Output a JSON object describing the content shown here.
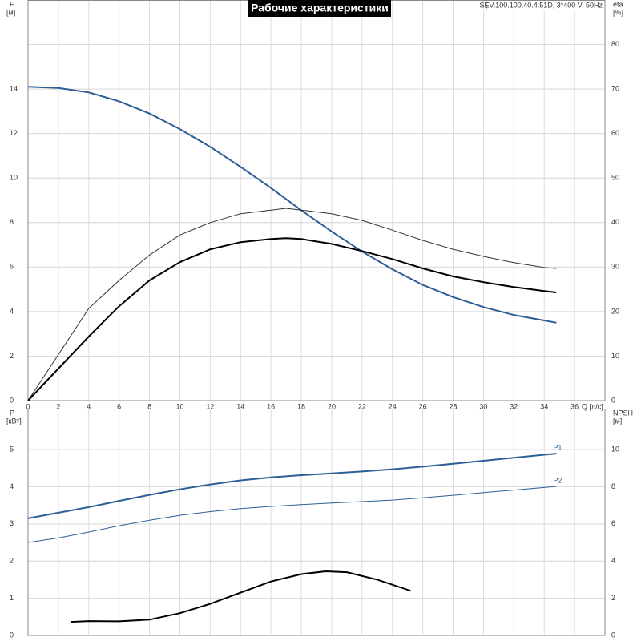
{
  "chart_data": [
    {
      "type": "line",
      "title": "Рабочие характеристики",
      "subtitle": "SEV.100.100.40.4.51D, 3*400 V, 50Hz",
      "x_label": "Q [л/с]",
      "y_label": [
        "H",
        "[м]"
      ],
      "y2_label": [
        "eta",
        "[%]"
      ],
      "xlim": [
        0,
        38
      ],
      "xticks": [
        0,
        2,
        4,
        6,
        8,
        10,
        12,
        14,
        16,
        18,
        20,
        22,
        24,
        26,
        28,
        30,
        32,
        34,
        36
      ],
      "ylim": [
        0,
        18
      ],
      "yticks": [
        0,
        2,
        4,
        6,
        8,
        10,
        12,
        14
      ],
      "y2lim": [
        0,
        90
      ],
      "y2ticks": [
        0,
        10,
        20,
        30,
        40,
        50,
        60,
        70,
        80
      ],
      "grid": true,
      "series": [
        {
          "color": "#2e5e96",
          "width": 2,
          "axis": "y",
          "x": [
            0,
            2,
            4,
            6,
            8,
            10,
            12,
            14,
            16,
            18,
            20,
            22,
            24,
            26,
            28,
            30,
            32,
            34,
            34.8
          ],
          "values": [
            14.1,
            14.05,
            13.85,
            13.45,
            12.9,
            12.2,
            11.4,
            10.5,
            9.55,
            8.55,
            7.6,
            6.7,
            5.9,
            5.2,
            4.65,
            4.2,
            3.85,
            3.6,
            3.5
          ]
        },
        {
          "color": "#333333",
          "width": 1,
          "axis": "y2",
          "x": [
            0,
            4,
            6,
            8,
            10,
            12,
            14,
            16,
            17,
            18,
            20,
            22,
            24,
            26,
            28,
            30,
            32,
            34,
            34.8
          ],
          "values": [
            0,
            20.7,
            27,
            32.7,
            37.2,
            40,
            42,
            42.8,
            43.2,
            42.8,
            42,
            40.5,
            38.3,
            36,
            34,
            32.4,
            31,
            29.9,
            29.7
          ]
        },
        {
          "color": "#000000",
          "width": 2,
          "axis": "y2",
          "x": [
            0,
            2,
            4,
            6,
            8,
            10,
            12,
            14,
            16,
            17,
            18,
            20,
            22,
            24,
            26,
            28,
            30,
            32,
            34,
            34.8
          ],
          "values": [
            0,
            7.2,
            14.4,
            21.2,
            27,
            31.1,
            34,
            35.6,
            36.3,
            36.5,
            36.3,
            35.2,
            33.6,
            31.8,
            29.7,
            27.9,
            26.6,
            25.5,
            24.6,
            24.3
          ]
        }
      ]
    },
    {
      "type": "line",
      "y_label": [
        "P",
        "[кВт]"
      ],
      "y2_label": [
        "NPSH",
        "[м]"
      ],
      "xlim": [
        0,
        38
      ],
      "ylim": [
        0,
        6.1
      ],
      "yticks": [
        0,
        1,
        2,
        3,
        4,
        5
      ],
      "y2lim": [
        0,
        12.2
      ],
      "y2ticks": [
        0,
        2,
        4,
        6,
        8,
        10
      ],
      "grid": true,
      "series": [
        {
          "name": "P1",
          "color": "#2e5e96",
          "width": 2,
          "axis": "y",
          "x": [
            0,
            2,
            4,
            6,
            8,
            10,
            12,
            14,
            16,
            18,
            20,
            22,
            24,
            26,
            28,
            30,
            32,
            34,
            34.8
          ],
          "values": [
            3.15,
            3.3,
            3.45,
            3.62,
            3.78,
            3.93,
            4.06,
            4.17,
            4.25,
            4.31,
            4.36,
            4.41,
            4.47,
            4.54,
            4.62,
            4.7,
            4.78,
            4.86,
            4.89
          ]
        },
        {
          "name": "P2",
          "color": "#2e5e96",
          "width": 1,
          "axis": "y",
          "x": [
            0,
            2,
            4,
            6,
            8,
            10,
            12,
            14,
            16,
            18,
            20,
            22,
            24,
            26,
            28,
            30,
            32,
            34,
            34.8
          ],
          "values": [
            2.5,
            2.62,
            2.78,
            2.95,
            3.1,
            3.23,
            3.33,
            3.41,
            3.47,
            3.52,
            3.56,
            3.6,
            3.64,
            3.7,
            3.77,
            3.84,
            3.91,
            3.98,
            4.01
          ]
        },
        {
          "color": "#000000",
          "width": 2,
          "axis": "y2",
          "x": [
            2.8,
            4,
            6,
            8,
            10,
            12,
            14,
            16,
            18,
            19.6,
            21,
            23,
            25.2
          ],
          "values": [
            0.73,
            0.77,
            0.76,
            0.85,
            1.2,
            1.7,
            2.3,
            2.9,
            3.3,
            3.45,
            3.4,
            3.0,
            2.4
          ]
        }
      ]
    }
  ]
}
